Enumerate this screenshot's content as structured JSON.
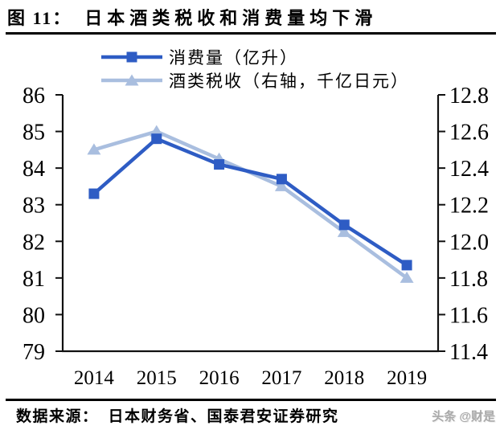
{
  "title": {
    "prefix": "图 11：",
    "text": "日本酒类税收和消费量均下滑"
  },
  "legend": [
    {
      "label": "消费量（亿升）",
      "marker": "square"
    },
    {
      "label": "酒类税收（右轴，千亿日元）",
      "marker": "triangle"
    }
  ],
  "source": {
    "label": "数据来源：",
    "text": "日本财务省、国泰君安证券研究"
  },
  "watermark": "头条 @财是",
  "colors": {
    "series_consumption": "#2E5CC4",
    "series_tax": "#A9BEDF",
    "axis": "#111111",
    "text": "#000000",
    "rule": "#000000",
    "watermark": "#A9A9A9"
  },
  "chart_data": {
    "type": "line",
    "title": "日本酒类税收和消费量均下滑",
    "categories": [
      "2014",
      "2015",
      "2016",
      "2017",
      "2018",
      "2019"
    ],
    "series": [
      {
        "name": "消费量（亿升）",
        "axis": "left",
        "marker": "square",
        "color": "#2E5CC4",
        "values": [
          83.3,
          84.8,
          84.1,
          83.7,
          82.45,
          81.35
        ]
      },
      {
        "name": "酒类税收（右轴，千亿日元）",
        "axis": "right",
        "marker": "triangle",
        "color": "#A9BEDF",
        "values": [
          12.5,
          12.6,
          12.45,
          12.3,
          12.05,
          11.8
        ]
      }
    ],
    "left_axis": {
      "min": 79,
      "max": 86,
      "step": 1,
      "ticks": [
        "86",
        "85",
        "84",
        "83",
        "82",
        "81",
        "80",
        "79"
      ]
    },
    "right_axis": {
      "min": 11.4,
      "max": 12.8,
      "step": 0.2,
      "ticks": [
        "12.8",
        "12.6",
        "12.4",
        "12.2",
        "12.0",
        "11.8",
        "11.6",
        "11.4"
      ]
    },
    "grid": false,
    "legend_position": "top-center",
    "xlabel": "",
    "ylabel_left": "亿升",
    "ylabel_right": "千亿日元"
  }
}
